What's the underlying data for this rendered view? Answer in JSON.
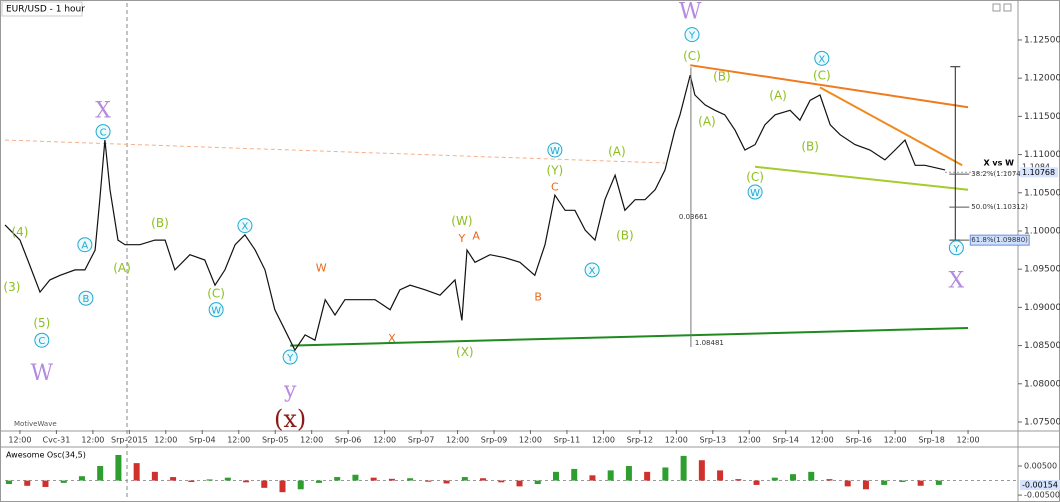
{
  "chart_data": {
    "type": "line",
    "title": "EUR/USD - 1 hour",
    "watermark": "MotiveWave",
    "color": "#111111",
    "x": [
      -0.41,
      0,
      0.27,
      0.55,
      0.82,
      1.1,
      1.51,
      1.78,
      2.06,
      2.19,
      2.33,
      2.47,
      2.69,
      2.88,
      3.29,
      3.7,
      3.98,
      4.25,
      4.66,
      5.07,
      5.35,
      5.62,
      5.9,
      6.17,
      6.45,
      6.72,
      6.99,
      7.27,
      7.54,
      7.82,
      8.09,
      8.37,
      8.64,
      8.91,
      9.33,
      9.74,
      10.15,
      10.42,
      10.7,
      11.11,
      11.52,
      11.93,
      12.12,
      12.26,
      12.48,
      12.89,
      13.3,
      13.71,
      14.12,
      14.4,
      14.67,
      14.95,
      15.22,
      15.5,
      15.77,
      16.04,
      16.32,
      16.59,
      16.87,
      17.14,
      17.42,
      17.69,
      17.96,
      18.1,
      18.38,
      18.51,
      18.79,
      19.06,
      19.33,
      19.61,
      19.88,
      20.16,
      20.43,
      20.71,
      21.12,
      21.39,
      21.67,
      21.94,
      22.22,
      22.49,
      22.9,
      23.31,
      23.72,
      24.0,
      24.27,
      24.55,
      24.82,
      25.37
    ],
    "values": [
      1.1008,
      1.0988,
      1.0955,
      1.092,
      1.0936,
      1.0942,
      1.0949,
      1.0949,
      1.0975,
      1.1041,
      1.1119,
      1.1054,
      1.0988,
      1.0982,
      1.0982,
      1.0988,
      1.0988,
      1.0949,
      1.0969,
      1.0962,
      1.0929,
      1.0949,
      1.0982,
      1.0995,
      1.0975,
      1.0949,
      1.0897,
      1.087,
      1.0844,
      1.0864,
      1.0857,
      1.091,
      1.089,
      1.091,
      1.091,
      1.091,
      1.0897,
      1.0923,
      1.0929,
      1.0923,
      1.0916,
      1.0936,
      1.0883,
      1.0975,
      1.0959,
      1.0969,
      1.0965,
      1.0959,
      1.0942,
      1.0982,
      1.1047,
      1.1027,
      1.1027,
      1.1001,
      1.0988,
      1.1041,
      1.1073,
      1.1027,
      1.1041,
      1.1041,
      1.1054,
      1.108,
      1.1132,
      1.1152,
      1.1204,
      1.1178,
      1.1165,
      1.1158,
      1.1152,
      1.1132,
      1.1106,
      1.1113,
      1.1139,
      1.1152,
      1.1158,
      1.1145,
      1.1171,
      1.1178,
      1.1139,
      1.1126,
      1.1113,
      1.1106,
      1.1093,
      1.1106,
      1.1119,
      1.1086,
      1.1086,
      1.108
    ],
    "xlim": [
      -0.41,
      27.37
    ],
    "ylim": [
      1.07395,
      1.12984
    ],
    "xticks": [
      {
        "value": 0,
        "label": "12:00"
      },
      {
        "value": 1,
        "label": "Cvc-31"
      },
      {
        "value": 2,
        "label": "12:00"
      },
      {
        "value": 3,
        "label": "Srp-2015"
      },
      {
        "value": 4,
        "label": "12:00"
      },
      {
        "value": 5,
        "label": "Srp-04"
      },
      {
        "value": 6,
        "label": "12:00"
      },
      {
        "value": 7,
        "label": "Srp-05"
      },
      {
        "value": 8,
        "label": "12:00"
      },
      {
        "value": 9,
        "label": "Srp-06"
      },
      {
        "value": 10,
        "label": "12:00"
      },
      {
        "value": 11,
        "label": "Srp-07"
      },
      {
        "value": 12,
        "label": "12:00"
      },
      {
        "value": 13,
        "label": "Srp-09"
      },
      {
        "value": 14,
        "label": "12:00"
      },
      {
        "value": 15,
        "label": "Srp-11"
      },
      {
        "value": 16,
        "label": "12:00"
      },
      {
        "value": 17,
        "label": "Srp-12"
      },
      {
        "value": 18,
        "label": "12:00"
      },
      {
        "value": 19,
        "label": "Srp-13"
      },
      {
        "value": 20,
        "label": "12:00"
      },
      {
        "value": 21,
        "label": "Srp-14"
      },
      {
        "value": 22,
        "label": "12:00"
      },
      {
        "value": 23,
        "label": "Srp-16"
      },
      {
        "value": 24,
        "label": "12:00"
      },
      {
        "value": 25,
        "label": "Srp-18"
      },
      {
        "value": 26,
        "label": "12:00"
      }
    ],
    "yticks": [
      {
        "value": 1.125,
        "label": "1.12500"
      },
      {
        "value": 1.12,
        "label": "1.12000"
      },
      {
        "value": 1.115,
        "label": "1.11500"
      },
      {
        "value": 1.11,
        "label": "1.11000"
      },
      {
        "value": 1.105,
        "label": "1.10500"
      },
      {
        "value": 1.1,
        "label": "1.10000"
      },
      {
        "value": 1.095,
        "label": "1.09500"
      },
      {
        "value": 1.09,
        "label": "1.09000"
      },
      {
        "value": 1.085,
        "label": "1.08500"
      },
      {
        "value": 1.08,
        "label": "1.08000"
      },
      {
        "value": 1.075,
        "label": "1.07500"
      }
    ],
    "last_price": 1.10768,
    "prev_price": 1.1084,
    "trendlines": [
      {
        "color": "#1f8a1f",
        "x": [
          7.41,
          26.0
        ],
        "y": [
          1.085,
          1.0873
        ],
        "dash": false
      },
      {
        "color": "#f07a1e",
        "x": [
          18.38,
          26.0
        ],
        "y": [
          1.1217,
          1.1162
        ],
        "dash": false
      },
      {
        "color": "#f08a1e",
        "x": [
          21.94,
          25.84
        ],
        "y": [
          1.1188,
          1.1086
        ],
        "dash": false
      },
      {
        "color": "#a5cc2a",
        "x": [
          20.16,
          26.0
        ],
        "y": [
          1.1084,
          1.1054
        ],
        "dash": false
      },
      {
        "color": "#f5b08a",
        "x": [
          -0.41,
          17.69
        ],
        "y": [
          1.1119,
          1.1089
        ],
        "dash": true
      }
    ],
    "measure": {
      "x": 18.4,
      "high": 1.12142,
      "low": 1.08481,
      "range": 0.03661
    },
    "projection": {
      "x": 25.65,
      "high": 1.1215,
      "low": 1.0988,
      "label": "X vs W"
    },
    "fib_levels": [
      {
        "label": "38.2%(1.10744)",
        "value": 1.10744
      },
      {
        "label": "50.0%(1.10312)",
        "value": 1.10312
      },
      {
        "label": "61.8%(1.09880)",
        "value": 1.0988
      }
    ],
    "annotations": [
      {
        "text": "W",
        "x": 18.38,
        "y": 1.1287,
        "style": "big"
      },
      {
        "text": "W",
        "x": 0.6,
        "y": 1.0814,
        "style": "big"
      },
      {
        "text": "X",
        "x": 2.28,
        "y": 1.1158,
        "style": "big"
      },
      {
        "text": "X",
        "x": 25.68,
        "y": 1.0935,
        "style": "big"
      },
      {
        "text": "y",
        "x": 7.41,
        "y": 1.0792,
        "style": "big"
      },
      {
        "text": "(x)",
        "x": 7.41,
        "y": 1.0753,
        "style": "big-red"
      },
      {
        "text": "Y",
        "x": 18.43,
        "y": 1.1257,
        "style": "circle"
      },
      {
        "text": "(C)",
        "x": 18.43,
        "y": 1.123,
        "style": "olive"
      },
      {
        "text": "(B)",
        "x": 19.25,
        "y": 1.1203,
        "style": "olive"
      },
      {
        "text": "(A)",
        "x": 18.84,
        "y": 1.1144,
        "style": "olive"
      },
      {
        "text": "X",
        "x": 21.99,
        "y": 1.1226,
        "style": "circle"
      },
      {
        "text": "(C)",
        "x": 21.99,
        "y": 1.1204,
        "style": "olive"
      },
      {
        "text": "(A)",
        "x": 20.79,
        "y": 1.1178,
        "style": "olive"
      },
      {
        "text": "(B)",
        "x": 21.67,
        "y": 1.1111,
        "style": "olive"
      },
      {
        "text": "(C)",
        "x": 20.16,
        "y": 1.1071,
        "style": "olive"
      },
      {
        "text": "W",
        "x": 20.16,
        "y": 1.1051,
        "style": "circle"
      },
      {
        "text": "Y",
        "x": 25.68,
        "y": 1.0978,
        "style": "circle"
      },
      {
        "text": "W",
        "x": 14.67,
        "y": 1.1106,
        "style": "circle"
      },
      {
        "text": "(Y)",
        "x": 14.67,
        "y": 1.108,
        "style": "olive"
      },
      {
        "text": "(A)",
        "x": 16.37,
        "y": 1.1105,
        "style": "olive"
      },
      {
        "text": "(B)",
        "x": 16.59,
        "y": 1.0995,
        "style": "olive"
      },
      {
        "text": "X",
        "x": 15.69,
        "y": 1.0949,
        "style": "circle"
      },
      {
        "text": "C",
        "x": 14.67,
        "y": 1.1058,
        "style": "orange"
      },
      {
        "text": "B",
        "x": 14.21,
        "y": 1.0914,
        "style": "orange"
      },
      {
        "text": "(W)",
        "x": 12.12,
        "y": 1.1014,
        "style": "olive"
      },
      {
        "text": "Y",
        "x": 12.12,
        "y": 1.0991,
        "style": "orange"
      },
      {
        "text": "A",
        "x": 12.51,
        "y": 1.0994,
        "style": "orange"
      },
      {
        "text": "(X)",
        "x": 12.2,
        "y": 1.0842,
        "style": "olive"
      },
      {
        "text": "X",
        "x": 10.2,
        "y": 1.086,
        "style": "orange"
      },
      {
        "text": "W",
        "x": 8.26,
        "y": 1.0952,
        "style": "orange"
      },
      {
        "text": "Y",
        "x": 7.41,
        "y": 1.0835,
        "style": "circle"
      },
      {
        "text": "X",
        "x": 6.17,
        "y": 1.1007,
        "style": "circle"
      },
      {
        "text": "(C)",
        "x": 5.38,
        "y": 1.0919,
        "style": "olive"
      },
      {
        "text": "W",
        "x": 5.38,
        "y": 1.0897,
        "style": "circle"
      },
      {
        "text": "(B)",
        "x": 3.84,
        "y": 1.1011,
        "style": "olive"
      },
      {
        "text": "(A)",
        "x": 2.8,
        "y": 1.0952,
        "style": "olive"
      },
      {
        "text": "C",
        "x": 2.28,
        "y": 1.113,
        "style": "circle"
      },
      {
        "text": "A",
        "x": 1.78,
        "y": 1.0982,
        "style": "circle"
      },
      {
        "text": "B",
        "x": 1.81,
        "y": 1.0912,
        "style": "circle"
      },
      {
        "text": "(4)",
        "x": 0,
        "y": 1.0999,
        "style": "olive"
      },
      {
        "text": "(3)",
        "x": -0.22,
        "y": 1.0927,
        "style": "olive"
      },
      {
        "text": "(5)",
        "x": 0.6,
        "y": 1.088,
        "style": "olive"
      },
      {
        "text": "C",
        "x": 0.6,
        "y": 1.0857,
        "style": "circle"
      }
    ],
    "oscillator": {
      "type": "bar",
      "title": "Awesome Osc(34,5)",
      "up_color": "#2e9e2e",
      "down_color": "#d0312d",
      "x": [
        -0.3,
        0.2,
        0.7,
        1.2,
        1.7,
        2.2,
        2.7,
        3.2,
        3.7,
        4.2,
        4.7,
        5.2,
        5.7,
        6.2,
        6.7,
        7.2,
        7.7,
        8.2,
        8.7,
        9.2,
        9.7,
        10.2,
        10.7,
        11.2,
        11.7,
        12.2,
        12.7,
        13.2,
        13.7,
        14.2,
        14.7,
        15.2,
        15.7,
        16.2,
        16.7,
        17.2,
        17.7,
        18.2,
        18.7,
        19.2,
        19.7,
        20.2,
        20.7,
        21.2,
        21.7,
        22.2,
        22.7,
        23.2,
        23.7,
        24.2,
        24.7,
        25.2
      ],
      "values": [
        -0.0012,
        -0.0018,
        -0.0022,
        -0.0008,
        0.0015,
        0.005,
        0.0088,
        0.006,
        0.003,
        0.0012,
        -0.0005,
        0.0004,
        0.001,
        -0.0006,
        -0.0025,
        -0.004,
        -0.003,
        -0.0008,
        0.0012,
        0.002,
        0.001,
        0.0006,
        0.0008,
        -0.0004,
        -0.001,
        0.0012,
        0.0008,
        -0.0006,
        -0.002,
        -0.0012,
        0.003,
        0.004,
        0.0018,
        0.0035,
        0.005,
        0.003,
        0.0045,
        0.0085,
        0.007,
        0.0035,
        0.0005,
        -0.0015,
        0.001,
        0.0022,
        0.003,
        0.0005,
        -0.002,
        -0.003,
        -0.0015,
        -0.0005,
        -0.0018,
        -0.0015
      ],
      "ylim": [
        -0.006,
        0.01086
      ],
      "yticks": [
        {
          "value": 0.005,
          "label": "0.00500"
        },
        {
          "value": -0.005,
          "label": "-0.00500"
        }
      ],
      "last_value": -0.00154
    }
  }
}
